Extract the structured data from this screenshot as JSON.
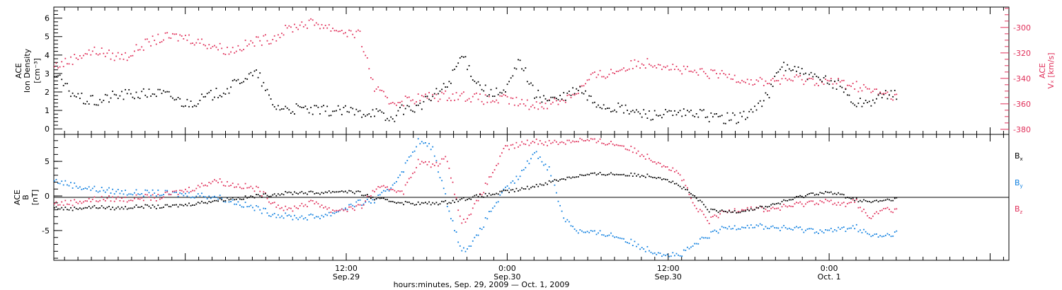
{
  "chart_data": [
    {
      "type": "scatter",
      "panel": "top",
      "ylabel_lines": [
        "ACE",
        "Ion Density"
      ],
      "ylabel_unit": "[cm⁻³]",
      "y2label_lines": [
        "ACE",
        "Vₓ [km/s]"
      ],
      "ylim": [
        -0.3,
        6.6
      ],
      "y2lim": [
        -384,
        -284
      ],
      "y_ticks": [
        "0",
        "1",
        "2",
        "3",
        "4",
        "5",
        "6"
      ],
      "y2_ticks": [
        "-300",
        "-320",
        "-340",
        "-360",
        "-380"
      ],
      "colors": {
        "density": "#000000",
        "vx": "#e0305a"
      },
      "series": [
        {
          "name": "Ion Density",
          "axis": "left",
          "color": "#000000",
          "x": [
            0,
            1,
            2,
            3,
            4,
            5,
            6,
            7,
            8,
            9,
            10,
            11,
            12,
            13,
            14,
            15,
            16,
            17,
            18,
            19,
            20,
            21,
            22,
            23,
            24,
            25,
            26,
            27,
            28,
            29,
            30,
            31,
            32,
            33,
            34,
            35,
            36,
            37,
            38,
            39,
            40,
            41,
            42,
            43,
            44,
            45,
            46,
            47,
            48,
            49,
            50,
            51,
            52,
            53,
            54,
            55,
            56,
            57,
            58
          ],
          "values": [
            3.0,
            2.1,
            1.6,
            1.5,
            1.8,
            1.9,
            1.9,
            2.0,
            1.8,
            1.4,
            1.6,
            1.9,
            2.2,
            2.8,
            3.0,
            1.3,
            1.1,
            1.1,
            1.0,
            1.0,
            1.0,
            0.9,
            1.0,
            0.5,
            1.1,
            1.2,
            1.8,
            2.4,
            4.0,
            2.6,
            1.9,
            2.0,
            3.8,
            1.9,
            1.6,
            1.7,
            2.2,
            1.5,
            1.2,
            1.1,
            0.9,
            0.8,
            0.8,
            0.8,
            0.9,
            0.7,
            0.6,
            0.6,
            1.0,
            1.8,
            3.5,
            3.2,
            2.8,
            2.6,
            2.4,
            1.4,
            1.5,
            1.8,
            1.9
          ]
        },
        {
          "name": "Vx",
          "axis": "right",
          "color": "#e0305a",
          "x": [
            0,
            1,
            2,
            3,
            4,
            5,
            6,
            7,
            8,
            9,
            10,
            11,
            12,
            13,
            14,
            15,
            16,
            17,
            18,
            19,
            20,
            21,
            22,
            23,
            24,
            25,
            26,
            27,
            28,
            29,
            30,
            31,
            32,
            33,
            34,
            35,
            36,
            37,
            38,
            39,
            40,
            41,
            42,
            43,
            44,
            45,
            46,
            47,
            48,
            49,
            50,
            51,
            52,
            53,
            54,
            55,
            56,
            57,
            58
          ],
          "values": [
            -330,
            -326,
            -320,
            -318,
            -322,
            -322,
            -314,
            -309,
            -307,
            -307,
            -311,
            -314,
            -318,
            -314,
            -310,
            -308,
            -301,
            -297,
            -296,
            -300,
            -303,
            -306,
            -347,
            -358,
            -357,
            -355,
            -354,
            -353,
            -353,
            -355,
            -357,
            -356,
            -359,
            -361,
            -359,
            -356,
            -349,
            -338,
            -336,
            -332,
            -328,
            -327,
            -329,
            -333,
            -335,
            -336,
            -337,
            -339,
            -342,
            -342,
            -341,
            -340,
            -341,
            -342,
            -343,
            -345,
            -349,
            -352,
            -355
          ]
        }
      ]
    },
    {
      "type": "line",
      "panel": "bottom",
      "ylabel_lines": [
        "ACE",
        "B"
      ],
      "ylabel_unit": "[nT]",
      "ylim": [
        -9.3,
        8.9
      ],
      "y_ticks": [
        "5",
        "0",
        "-5"
      ],
      "legend": [
        "Bₓ",
        "Bᵧ",
        "B_z"
      ],
      "legend_position": "right",
      "legend_labels": {
        "bx": "B",
        "bx_sub": "x",
        "by": "B",
        "by_sub": "y",
        "bz": "B",
        "bz_sub": "z"
      },
      "colors": {
        "bx": "#000000",
        "by": "#1080e0",
        "bz": "#e0305a"
      },
      "series": [
        {
          "name": "Bx",
          "color": "#000000",
          "x": [
            0,
            1,
            2,
            3,
            4,
            5,
            6,
            7,
            8,
            9,
            10,
            11,
            12,
            13,
            14,
            15,
            16,
            17,
            18,
            19,
            20,
            21,
            22,
            23,
            24,
            25,
            26,
            27,
            28,
            29,
            30,
            31,
            32,
            33,
            34,
            35,
            36,
            37,
            38,
            39,
            40,
            41,
            42,
            43,
            44,
            45,
            46,
            47,
            48,
            49,
            50,
            51,
            52,
            53,
            54,
            55,
            56,
            57,
            58
          ],
          "values": [
            -1.6,
            -1.8,
            -1.6,
            -1.5,
            -1.7,
            -1.6,
            -1.4,
            -1.5,
            -1.4,
            -1.2,
            -0.9,
            -0.6,
            -0.3,
            -0.2,
            0.1,
            0.3,
            0.5,
            0.6,
            0.5,
            0.7,
            0.8,
            0.5,
            -0.3,
            -0.6,
            -0.9,
            -1.0,
            -1.0,
            -0.8,
            -0.4,
            0.0,
            0.3,
            0.7,
            1.0,
            1.5,
            2.1,
            2.6,
            3.0,
            3.2,
            3.3,
            3.2,
            3.1,
            3.0,
            2.6,
            1.5,
            0.0,
            -2.0,
            -2.2,
            -2.1,
            -1.8,
            -1.4,
            -0.8,
            -0.2,
            0.4,
            0.6,
            0.3,
            -0.4,
            -0.8,
            -0.6,
            -0.3
          ]
        },
        {
          "name": "By",
          "color": "#1080e0",
          "x": [
            0,
            1,
            2,
            3,
            4,
            5,
            6,
            7,
            8,
            9,
            10,
            11,
            12,
            13,
            14,
            15,
            16,
            17,
            18,
            19,
            20,
            21,
            22,
            23,
            24,
            25,
            26,
            27,
            28,
            29,
            30,
            31,
            32,
            33,
            34,
            35,
            36,
            37,
            38,
            39,
            40,
            41,
            42,
            43,
            44,
            45,
            46,
            47,
            48,
            49,
            50,
            51,
            52,
            53,
            54,
            55,
            56,
            57,
            58
          ],
          "values": [
            2.3,
            1.8,
            1.3,
            1.0,
            0.8,
            0.6,
            0.5,
            0.5,
            0.4,
            0.3,
            0.2,
            0.0,
            -0.5,
            -1.2,
            -1.8,
            -2.5,
            -2.9,
            -3.0,
            -2.9,
            -2.5,
            -1.6,
            -0.9,
            -0.6,
            1.0,
            4.0,
            8.0,
            7.0,
            -1.0,
            -8.0,
            -6.0,
            -2.0,
            1.0,
            3.0,
            6.5,
            4.0,
            -3.0,
            -5.0,
            -5.3,
            -5.4,
            -6.0,
            -7.0,
            -7.8,
            -8.3,
            -8.5,
            -7.0,
            -5.6,
            -4.6,
            -4.3,
            -4.2,
            -4.4,
            -4.6,
            -4.7,
            -4.8,
            -5.0,
            -4.8,
            -4.3,
            -5.6,
            -5.8,
            -5.2
          ]
        },
        {
          "name": "Bz",
          "color": "#e0305a",
          "x": [
            0,
            1,
            2,
            3,
            4,
            5,
            6,
            7,
            8,
            9,
            10,
            11,
            12,
            13,
            14,
            15,
            16,
            17,
            18,
            19,
            20,
            21,
            22,
            23,
            24,
            25,
            26,
            27,
            28,
            29,
            30,
            31,
            32,
            33,
            34,
            35,
            36,
            37,
            38,
            39,
            40,
            41,
            42,
            43,
            44,
            45,
            46,
            47,
            48,
            49,
            50,
            51,
            52,
            53,
            54,
            55,
            56,
            57,
            58
          ],
          "values": [
            -1.0,
            -0.9,
            -0.6,
            -0.4,
            -0.3,
            -0.4,
            -0.1,
            -0.2,
            0.4,
            0.9,
            1.5,
            2.4,
            1.8,
            1.5,
            1.0,
            -0.8,
            -2.0,
            -1.2,
            -0.8,
            -2.0,
            -1.8,
            -1.6,
            1.0,
            1.2,
            0.8,
            5.0,
            4.5,
            5.5,
            -4.0,
            -1.0,
            3.0,
            7.0,
            7.5,
            8.0,
            7.8,
            7.9,
            8.2,
            8.0,
            7.8,
            7.4,
            6.5,
            5.5,
            4.5,
            3.2,
            -1.5,
            -3.5,
            -2.3,
            -1.8,
            -1.6,
            -1.9,
            -1.6,
            -1.2,
            -0.8,
            -0.6,
            -1.3,
            -0.5,
            -3.2,
            -1.8,
            -2.1
          ]
        }
      ]
    }
  ],
  "time_axis": {
    "xlim_hours": [
      -9.8,
      61.4
    ],
    "x_unit": "hours since Sep. 29, 2009 00:00",
    "tick_labels": [
      {
        "hour": 12,
        "time": "12:00",
        "date": "Sep.29"
      },
      {
        "hour": 24,
        "time": "0:00",
        "date": "Sep.30"
      },
      {
        "hour": 36,
        "time": "12:00",
        "date": "Sep.30"
      },
      {
        "hour": 48,
        "time": "0:00",
        "date": "Oct. 1"
      }
    ],
    "title": "hours:minutes, Sep. 29, 2009 — Oct. 1, 2009"
  }
}
